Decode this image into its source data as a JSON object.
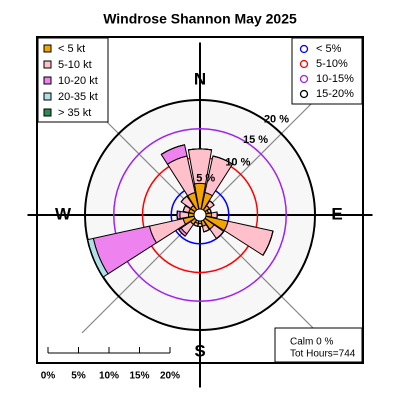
{
  "chart_data": {
    "type": "windrose",
    "title": "Windrose  Shannon May 2025",
    "directions": [
      "N",
      "NNE",
      "NE",
      "ENE",
      "E",
      "ESE",
      "SE",
      "SSE",
      "S",
      "SSW",
      "SW",
      "WSW",
      "W",
      "WNW",
      "NW",
      "NNW"
    ],
    "series": [
      {
        "name": "< 5  kt",
        "color": "#f5a300",
        "values": [
          5.5,
          4,
          2,
          1.5,
          2,
          5,
          3,
          2,
          1.5,
          1.5,
          2,
          3,
          2,
          2,
          2,
          4
        ]
      },
      {
        "name": "5-10 kt",
        "color": "#ffc0cb",
        "values": [
          6,
          6.5,
          1,
          0.5,
          1,
          8,
          2,
          1,
          0.5,
          0.5,
          2,
          6,
          1.5,
          1,
          2,
          6.5
        ]
      },
      {
        "name": "10-20 kt",
        "color": "#ee82ee",
        "values": [
          0,
          0,
          0,
          0,
          0,
          0,
          0,
          0,
          0,
          0,
          0.5,
          10,
          0.5,
          0,
          0,
          2
        ]
      },
      {
        "name": "20-35 kt",
        "color": "#b0e0e6",
        "values": [
          0,
          0,
          0,
          0,
          0,
          0,
          0,
          0,
          0,
          0,
          0,
          1,
          0,
          0,
          0,
          0
        ]
      },
      {
        "name": "> 35 kt",
        "color": "#2e8b57",
        "values": [
          0,
          0,
          0,
          0,
          0,
          0,
          0,
          0,
          0,
          0,
          0,
          0,
          0,
          0,
          0,
          0
        ]
      }
    ],
    "rlim": [
      0,
      20
    ],
    "rticks": [
      {
        "value": 5,
        "label": "5 %"
      },
      {
        "value": 10,
        "label": "10 %"
      },
      {
        "value": 15,
        "label": "15 %"
      },
      {
        "value": 20,
        "label": "20 %"
      }
    ],
    "ring_colors": [
      "#0000ff",
      "#ff0000",
      "#a020f0",
      "#000000"
    ],
    "ring_legend": [
      "< 5%",
      "5-10%",
      "10-15%",
      "15-20%"
    ],
    "compass": [
      "N",
      "E",
      "S",
      "W"
    ],
    "scale_ticks": [
      {
        "value": 0,
        "label": "0%"
      },
      {
        "value": 5,
        "label": "5%"
      },
      {
        "value": 10,
        "label": "10%"
      },
      {
        "value": 15,
        "label": "15%"
      },
      {
        "value": 20,
        "label": "20%"
      }
    ],
    "calm": "Calm 0 %",
    "total": "Tot Hours=744"
  }
}
